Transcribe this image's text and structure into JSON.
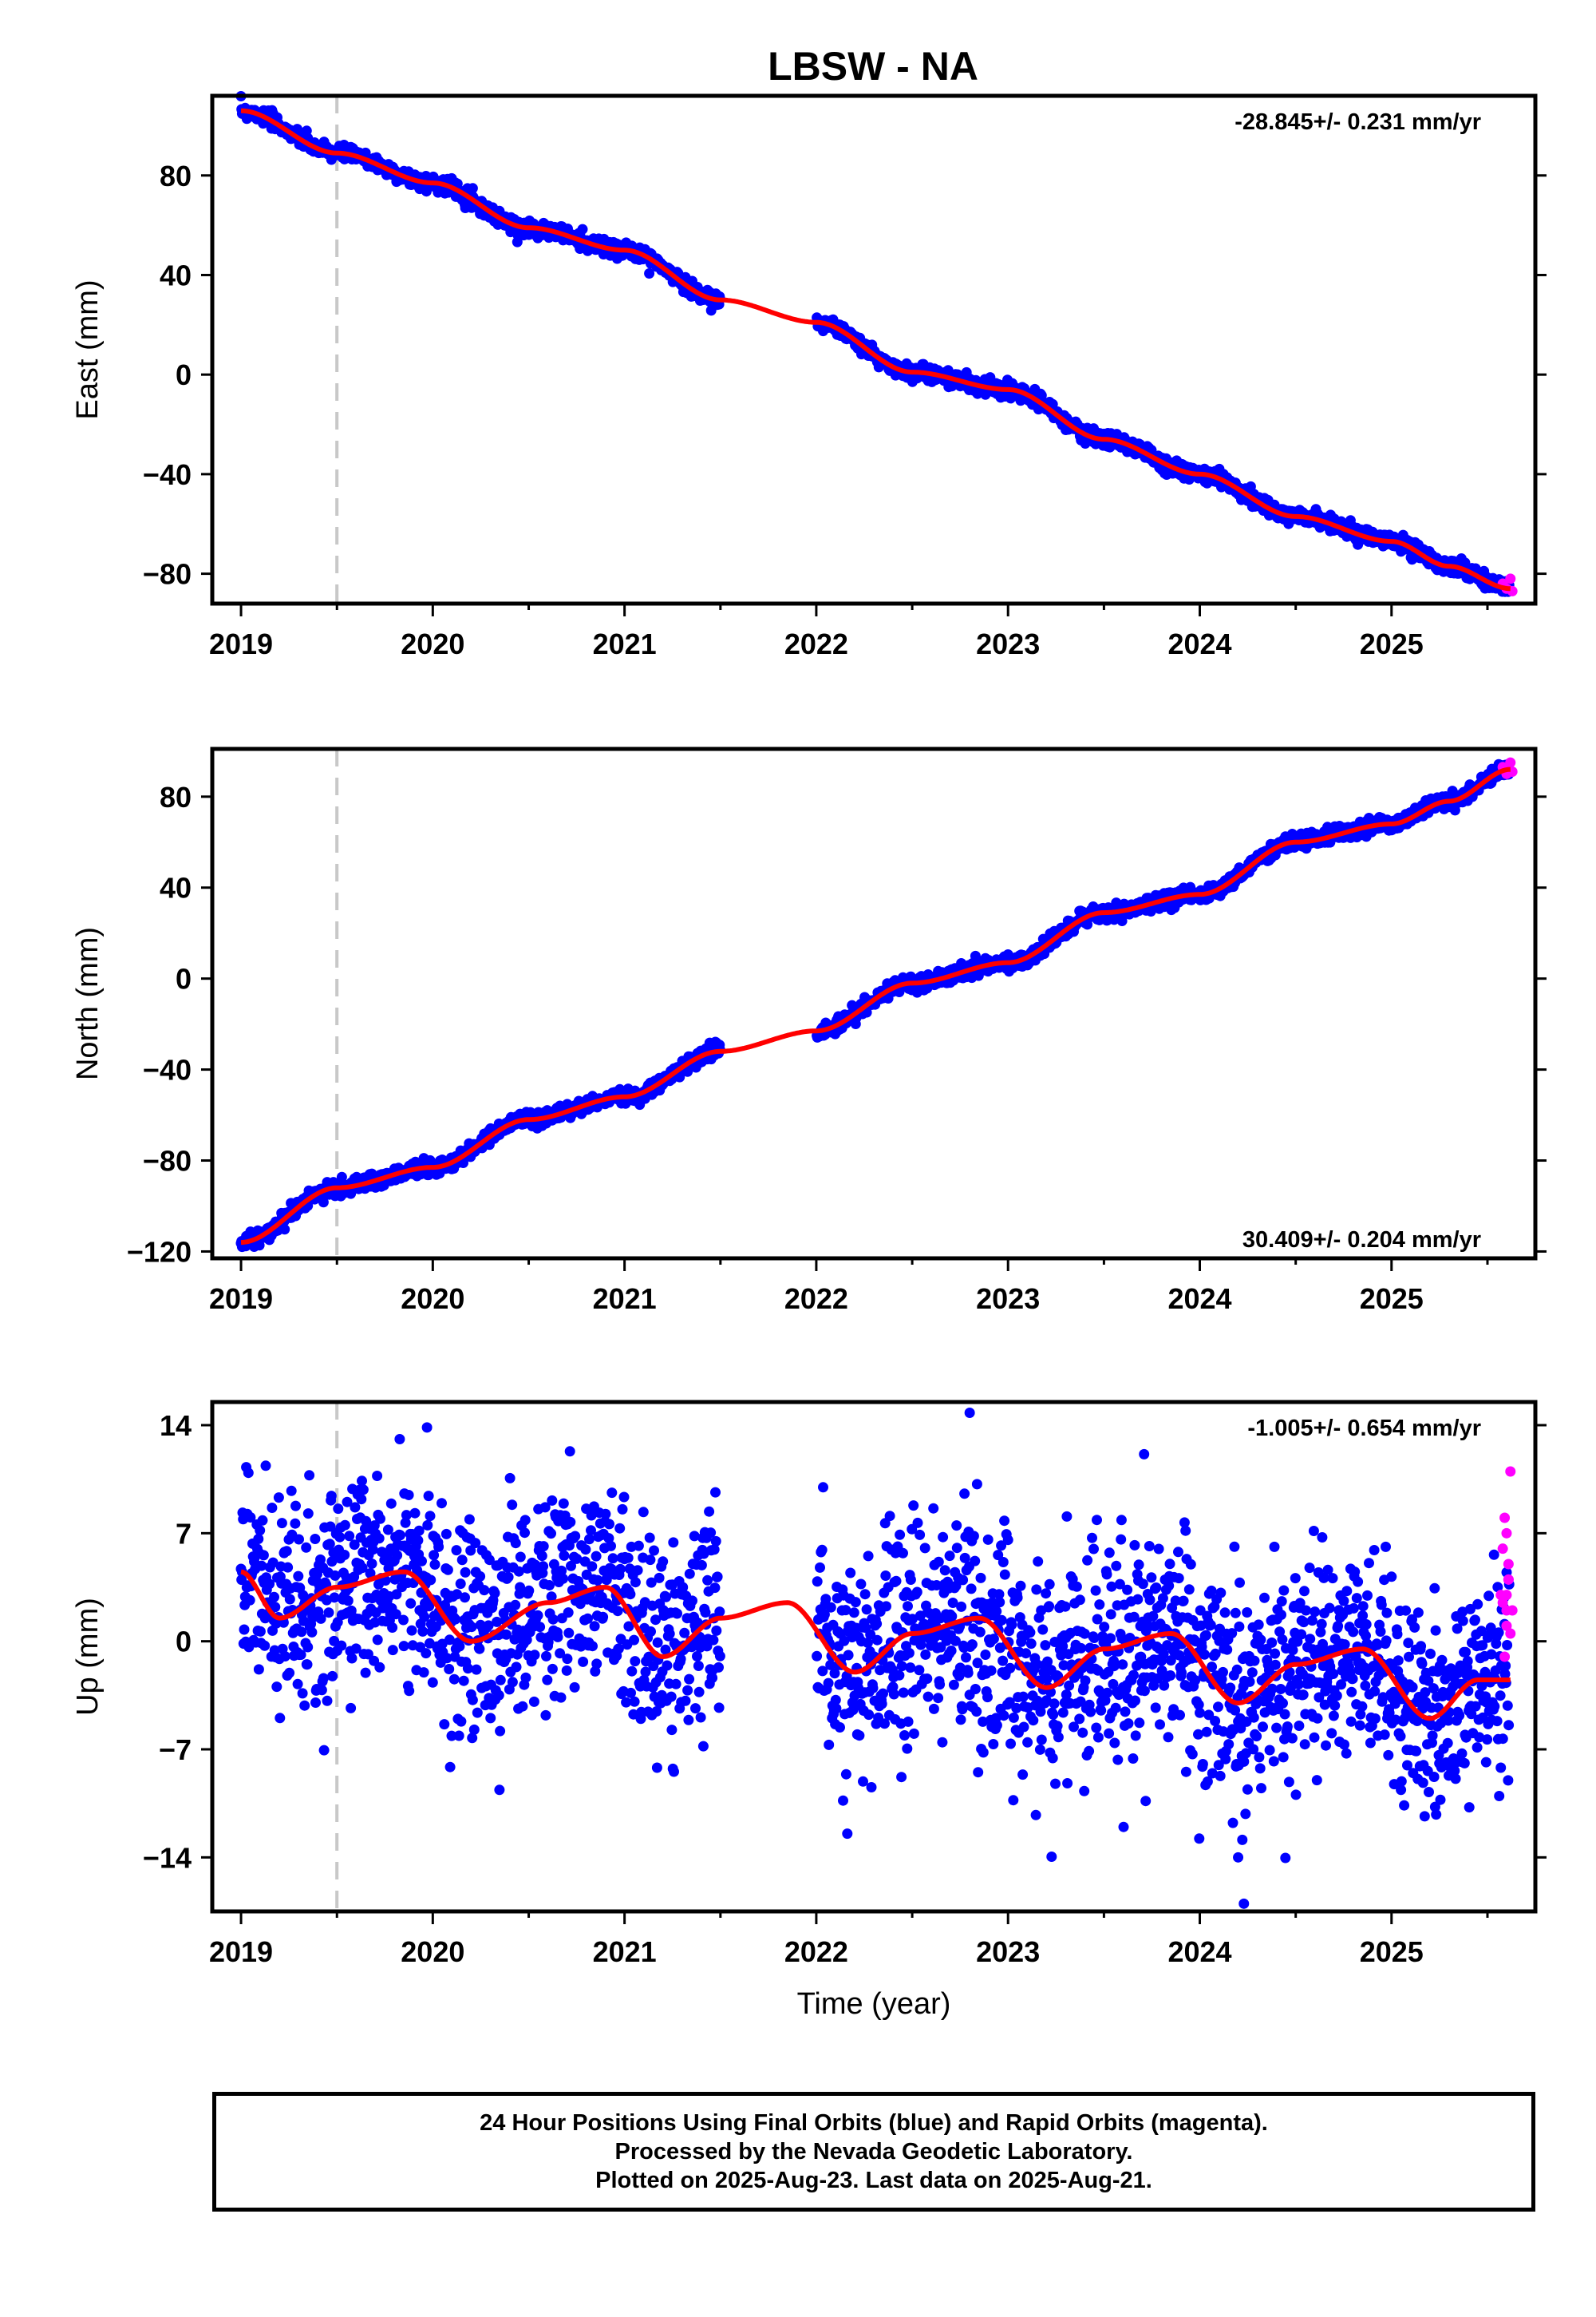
{
  "title": "LBSW - NA",
  "footer": {
    "line1": "24 Hour Positions Using Final Orbits (blue) and Rapid Orbits (magenta).",
    "line2": "Processed by the Nevada Geodetic Laboratory.",
    "line3": "Plotted on 2025-Aug-23. Last data on 2025-Aug-21."
  },
  "colors": {
    "final": "#0000ff",
    "rapid": "#ff00ff",
    "fit": "#ff0000",
    "event": "#c8c8c8"
  },
  "chart_data": [
    {
      "type": "scatter",
      "ylabel": "East (mm)",
      "xlabel": "",
      "rate": "-28.845+/- 0.231 mm/yr",
      "xlim": [
        2018.85,
        2025.75
      ],
      "ylim": [
        -92,
        112
      ],
      "yticks": [
        80,
        40,
        0,
        -40,
        -80
      ],
      "ytick_labels": [
        "80",
        "40",
        "0",
        "−40",
        "−80"
      ],
      "xticks": [
        2019,
        2020,
        2021,
        2022,
        2023,
        2024,
        2025
      ],
      "xtick_labels": [
        "2019",
        "2020",
        "2021",
        "2022",
        "2023",
        "2024",
        "2025"
      ],
      "event_lines": [
        2019.5
      ],
      "rate_position": "top-right",
      "data_gap": [
        2021.5,
        2022.0
      ],
      "trend": {
        "x": [
          2019.0,
          2019.5,
          2020.0,
          2020.5,
          2021.0,
          2021.5,
          2022.0,
          2022.5,
          2023.0,
          2023.5,
          2024.0,
          2024.5,
          2025.0,
          2025.3,
          2025.62
        ],
        "y": [
          106,
          89,
          77,
          59,
          50,
          30,
          21,
          1,
          -6,
          -26,
          -40,
          -57,
          -67,
          -77,
          -86
        ]
      },
      "noise_sd": 1.5,
      "rapid": {
        "x": [
          2025.58,
          2025.6,
          2025.62,
          2025.63
        ],
        "y": [
          -84,
          -86,
          -82,
          -87
        ]
      }
    },
    {
      "type": "scatter",
      "ylabel": "North (mm)",
      "xlabel": "",
      "rate": "30.409+/- 0.204 mm/yr",
      "xlim": [
        2018.85,
        2025.75
      ],
      "ylim": [
        -123,
        101
      ],
      "yticks": [
        80,
        40,
        0,
        -40,
        -80,
        -120
      ],
      "ytick_labels": [
        "80",
        "40",
        "0",
        "−40",
        "−80",
        "−120"
      ],
      "xticks": [
        2019,
        2020,
        2021,
        2022,
        2023,
        2024,
        2025
      ],
      "xtick_labels": [
        "2019",
        "2020",
        "2021",
        "2022",
        "2023",
        "2024",
        "2025"
      ],
      "event_lines": [
        2019.5
      ],
      "rate_position": "bottom-right",
      "data_gap": [
        2021.5,
        2022.0
      ],
      "trend": {
        "x": [
          2019.0,
          2019.5,
          2020.0,
          2020.5,
          2021.0,
          2021.5,
          2022.0,
          2022.5,
          2023.0,
          2023.5,
          2024.0,
          2024.5,
          2025.0,
          2025.3,
          2025.62
        ],
        "y": [
          -116,
          -92,
          -83,
          -62,
          -52,
          -32,
          -23,
          -2,
          7,
          29,
          37,
          60,
          68,
          78,
          92
        ]
      },
      "noise_sd": 1.6,
      "rapid": {
        "x": [
          2025.58,
          2025.6,
          2025.62,
          2025.63
        ],
        "y": [
          93,
          90,
          95,
          91
        ]
      }
    },
    {
      "type": "scatter",
      "ylabel": "Up (mm)",
      "xlabel": "Time (year)",
      "rate": "-1.005+/- 0.654 mm/yr",
      "xlim": [
        2018.85,
        2025.75
      ],
      "ylim": [
        -17.5,
        15.5
      ],
      "yticks": [
        14,
        7,
        0,
        -7,
        -14
      ],
      "ytick_labels": [
        "14",
        "7",
        "0",
        "−7",
        "−14"
      ],
      "xticks": [
        2019,
        2020,
        2021,
        2022,
        2023,
        2024,
        2025
      ],
      "xtick_labels": [
        "2019",
        "2020",
        "2021",
        "2022",
        "2023",
        "2024",
        "2025"
      ],
      "event_lines": [
        2019.5
      ],
      "rate_position": "top-right",
      "data_gap": [
        2021.5,
        2022.0
      ],
      "trend": {
        "x": [
          2019.0,
          2019.2,
          2019.5,
          2019.85,
          2020.2,
          2020.6,
          2020.9,
          2021.2,
          2021.5,
          2021.85,
          2022.2,
          2022.5,
          2022.85,
          2023.2,
          2023.5,
          2023.85,
          2024.2,
          2024.5,
          2024.85,
          2025.2,
          2025.45,
          2025.62
        ],
        "y": [
          4.5,
          1.5,
          3.5,
          4.5,
          0,
          2.5,
          3.5,
          -1,
          1.5,
          2.5,
          -2,
          0.5,
          1.5,
          -3,
          -0.5,
          0.5,
          -4,
          -1.5,
          -0.5,
          -5,
          -2.5,
          -2.5
        ]
      },
      "noise_sd": 3.5,
      "rapid": {
        "x": [
          2025.57,
          2025.58,
          2025.59,
          2025.6,
          2025.61,
          2025.6,
          2025.59,
          2025.62,
          2025.61,
          2025.6,
          2025.63,
          2025.6,
          2025.62,
          2025.58,
          2025.61
        ],
        "y": [
          3,
          6,
          8,
          2,
          4,
          1,
          -1,
          11,
          5,
          3,
          2,
          7,
          0.5,
          2.5,
          4
        ]
      },
      "outliers": {
        "x": [
          2024.23,
          2022.8,
          2024.2
        ],
        "y": [
          -17,
          14.8,
          -14
        ]
      }
    }
  ]
}
